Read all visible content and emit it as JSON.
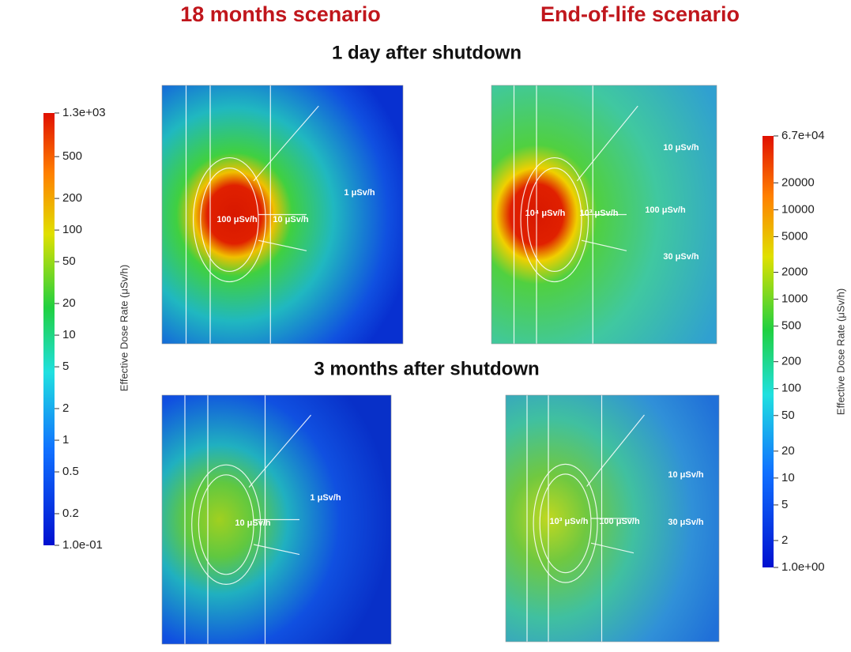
{
  "headers": {
    "left": "18 months scenario",
    "right": "End-of-life scenario"
  },
  "rows": [
    "1 day after shutdown",
    "3 months after shutdown"
  ],
  "panels": [
    {
      "annotations": [
        "100 μSv/h",
        "10 μSv/h",
        "1 μSv/h"
      ]
    },
    {
      "annotations": [
        "10⁴ μSv/h",
        "10³ μSv/h",
        "100 μSv/h",
        "10 μSv/h",
        "30 μSv/h"
      ]
    },
    {
      "annotations": [
        "10 μSv/h",
        "1 μSv/h"
      ]
    },
    {
      "annotations": [
        "10³ μSv/h",
        "100 μSv/h",
        "10 μSv/h",
        "30 μSv/h"
      ]
    }
  ],
  "colorbars": [
    {
      "label": "Effective Dose Rate (μSv/h)",
      "log_scale": true,
      "lim": [
        0.1,
        1300
      ],
      "ticks": [
        {
          "value": 1300,
          "label": "1.3e+03"
        },
        500,
        200,
        100,
        50,
        20,
        10,
        5,
        2,
        1,
        0.5,
        0.2,
        {
          "value": 0.1,
          "label": "1.0e-01"
        }
      ]
    },
    {
      "label": "Effective Dose Rate (μSv/h)",
      "log_scale": true,
      "lim": [
        1,
        67000
      ],
      "ticks": [
        {
          "value": 67000,
          "label": "6.7e+04"
        },
        20000,
        10000,
        5000,
        2000,
        1000,
        500,
        200,
        100,
        50,
        20,
        10,
        5,
        2,
        {
          "value": 1,
          "label": "1.0e+00"
        }
      ]
    }
  ]
}
